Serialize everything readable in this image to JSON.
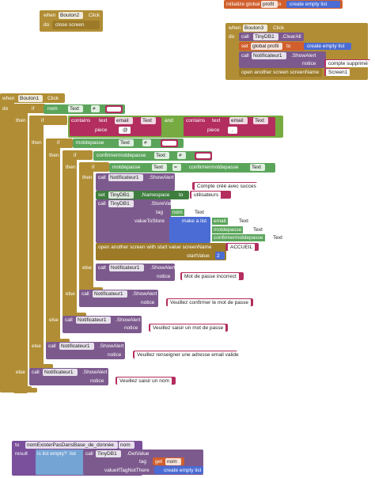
{
  "bouton2_click": {
    "rows": [
      [
        "when",
        "Bouton2",
        "Click"
      ],
      [
        "do",
        "close screen"
      ]
    ]
  },
  "global_profil": {
    "rows": [
      [
        "initialize global",
        "profil",
        "to",
        "create empty list"
      ]
    ]
  },
  "bouton3_click": {
    "rows": [
      [
        "when",
        "Bouton3",
        "Click"
      ],
      [
        "do",
        "call",
        "TinyDB1",
        ".ClearAll"
      ],
      [
        "set",
        "global profil",
        "to",
        "create empty list"
      ],
      [
        "call",
        "Notificateur1",
        ".ShowAlert"
      ],
      [
        "notice",
        "compte supprimé"
      ],
      [
        "open another screen  screenName",
        "Screen1"
      ]
    ]
  },
  "bouton1_click": {
    "rows": [
      [
        "when",
        "Bouton1",
        "Click"
      ],
      [
        "do",
        "if",
        "nom",
        "Text",
        "≠"
      ],
      [
        "then",
        "if",
        "contains",
        "text",
        "email",
        "Text",
        "and",
        "contains",
        "text",
        "email",
        "Text"
      ],
      [
        "piece",
        "@",
        "piece",
        "."
      ],
      [
        "then",
        "if",
        "motdepasse",
        "Text",
        "≠"
      ],
      [
        "then",
        "if",
        "confirmermotdepasse",
        "Text",
        "≠"
      ],
      [
        "then",
        "if",
        "motdepasse",
        "Text",
        "=",
        "confirmermotdepasse",
        "Text"
      ],
      [
        "then",
        "call",
        "Notificateur1",
        ".ShowAlert"
      ],
      [
        "notice",
        "Compte créé avec succes"
      ],
      [
        "set",
        "TinyDB1",
        ".Namespace",
        "to",
        "utilisateurs"
      ],
      [
        "call",
        "TinyDB1",
        ".StoreValue"
      ],
      [
        "tag",
        "nom",
        "Text"
      ],
      [
        "valueToStore",
        "make a list",
        "email",
        "Text"
      ],
      [
        "motdepasse",
        "Text"
      ],
      [
        "confirmermotdepasse",
        "Text"
      ],
      [
        "open another screen with start value  screenName",
        "ACCUEIL"
      ],
      [
        "startValue",
        "2"
      ],
      [
        "else",
        "call",
        "Notificateur1",
        ".ShowAlert"
      ],
      [
        "notice",
        "Mot de passe incorrect"
      ],
      [
        "else",
        "call",
        "Notificateur1",
        ".ShowAlert"
      ],
      [
        "notice",
        "Veuillez confirmer le mot de passe"
      ],
      [
        "else",
        "call",
        "Notificateur1",
        ".ShowAlert"
      ],
      [
        "notice",
        "Veuillez saisir un mot de passe"
      ],
      [
        "else",
        "call",
        "Notificateur1",
        ".ShowAlert"
      ],
      [
        "notice",
        "Veuillez renseigner une adresse email valide"
      ],
      [
        "else",
        "call",
        "Notificateur1",
        ".ShowAlert"
      ],
      [
        "notice",
        "Veuillez saisir un nom"
      ]
    ]
  },
  "procedure": {
    "rows": [
      [
        "to",
        "nomExisterPasDansBase_de_donnée",
        "nom"
      ],
      [
        "result",
        "is list empty?",
        "list",
        "call",
        "TinyDB1",
        ".GetValue"
      ],
      [
        "tag",
        "get",
        "nom"
      ],
      [
        "valueIfTagNotThere",
        "create empty list"
      ]
    ]
  }
}
